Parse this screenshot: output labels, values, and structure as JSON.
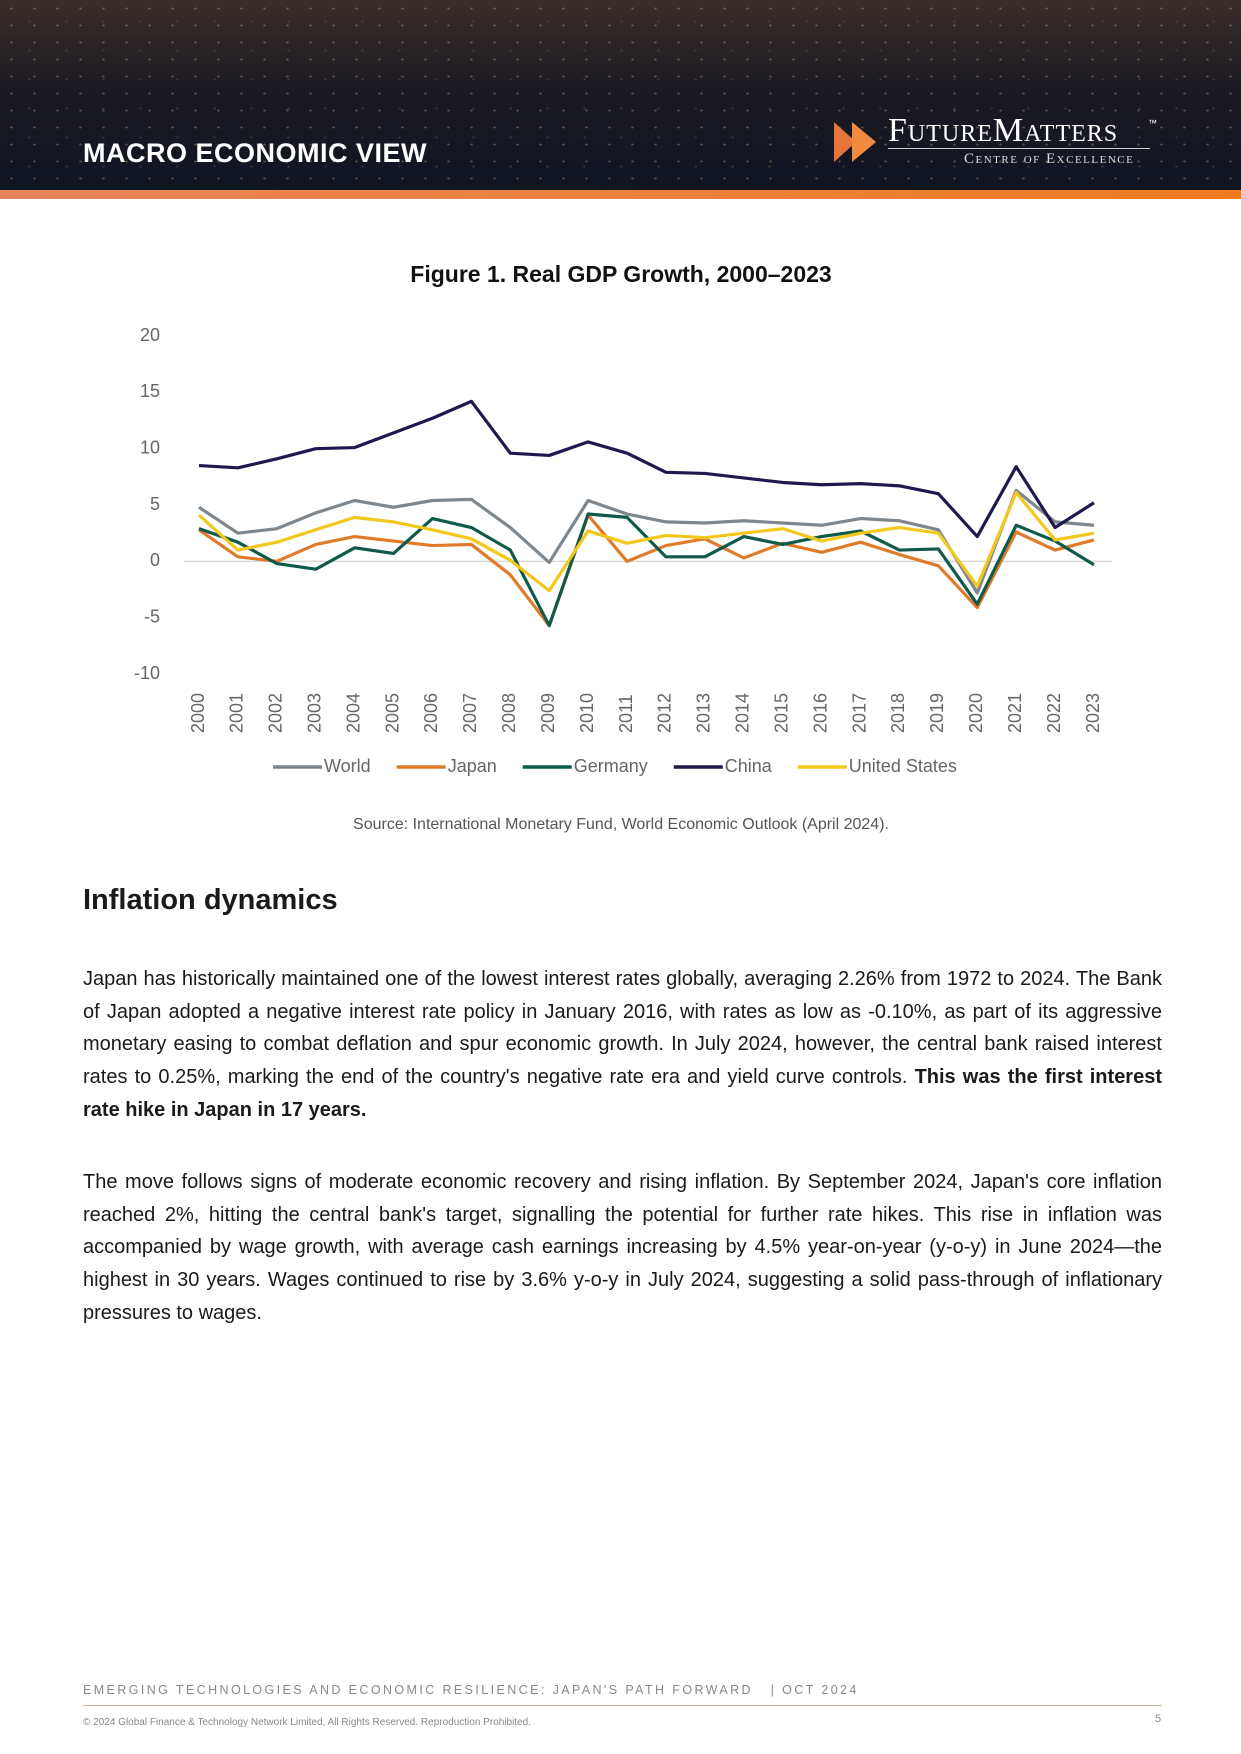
{
  "header": {
    "section": "MACRO ECONOMIC VIEW",
    "logo_name": "FutureMatters",
    "logo_tm": "™",
    "logo_tagline": "Centre of Excellence"
  },
  "chart_data": {
    "type": "line",
    "title": "Figure 1. Real GDP Growth, 2000–2023",
    "categories": [
      "2000",
      "2001",
      "2002",
      "2003",
      "2004",
      "2005",
      "2006",
      "2007",
      "2008",
      "2009",
      "2010",
      "2011",
      "2012",
      "2013",
      "2014",
      "2015",
      "2016",
      "2017",
      "2018",
      "2019",
      "2020",
      "2021",
      "2022",
      "2023"
    ],
    "series": [
      {
        "name": "World",
        "color": "#7d878d",
        "values": [
          4.8,
          2.5,
          2.9,
          4.3,
          5.4,
          4.8,
          5.4,
          5.5,
          3.0,
          -0.1,
          5.4,
          4.2,
          3.5,
          3.4,
          3.6,
          3.4,
          3.2,
          3.8,
          3.6,
          2.8,
          -2.8,
          6.3,
          3.5,
          3.2
        ]
      },
      {
        "name": "Japan",
        "color": "#e07b2a",
        "values": [
          2.8,
          0.4,
          0.0,
          1.5,
          2.2,
          1.8,
          1.4,
          1.5,
          -1.2,
          -5.7,
          4.1,
          0.0,
          1.4,
          2.0,
          0.3,
          1.6,
          0.8,
          1.7,
          0.6,
          -0.4,
          -4.1,
          2.6,
          1.0,
          1.9
        ]
      },
      {
        "name": "Germany",
        "color": "#0f5a4a",
        "values": [
          2.9,
          1.7,
          -0.2,
          -0.7,
          1.2,
          0.7,
          3.8,
          3.0,
          1.0,
          -5.7,
          4.2,
          3.9,
          0.4,
          0.4,
          2.2,
          1.5,
          2.2,
          2.7,
          1.0,
          1.1,
          -3.8,
          3.2,
          1.8,
          -0.3
        ]
      },
      {
        "name": "China",
        "color": "#1f1a4e",
        "values": [
          8.5,
          8.3,
          9.1,
          10.0,
          10.1,
          11.4,
          12.7,
          14.2,
          9.6,
          9.4,
          10.6,
          9.6,
          7.9,
          7.8,
          7.4,
          7.0,
          6.8,
          6.9,
          6.7,
          6.0,
          2.2,
          8.4,
          3.0,
          5.2
        ]
      },
      {
        "name": "United States",
        "color": "#f4c71c",
        "values": [
          4.1,
          1.0,
          1.7,
          2.8,
          3.9,
          3.5,
          2.8,
          2.0,
          0.1,
          -2.6,
          2.7,
          1.6,
          2.3,
          2.1,
          2.5,
          2.9,
          1.8,
          2.5,
          3.0,
          2.5,
          -2.2,
          6.1,
          1.9,
          2.5
        ]
      }
    ],
    "ylim": [
      -10,
      20
    ],
    "yticks": [
      20,
      15,
      10,
      5,
      0,
      -5,
      -10
    ],
    "grid": false,
    "legend": "bottom",
    "source": "Source: International Monetary Fund, World Economic Outlook (April 2024)."
  },
  "section": {
    "heading": "Inflation dynamics",
    "paragraphs": [
      {
        "text": "Japan has historically maintained one of the lowest interest rates globally, averaging 2.26% from 1972 to 2024. The Bank of Japan adopted a negative interest rate policy in January 2016, with rates as low as -0.10%, as part of its aggressive monetary easing to combat deflation and spur economic growth. In July 2024, however, the central bank raised interest rates to 0.25%, marking the end of the country's negative rate era and yield curve controls.",
        "bold": "This was the first interest rate hike in Japan in 17 years."
      },
      {
        "text": "The move follows signs of moderate economic recovery and rising inflation. By September 2024, Japan's core inflation reached 2%, hitting the central bank's target, signalling the potential for further rate hikes. This rise in inflation was accompanied by wage growth, with average cash earnings increasing by 4.5% year-on-year (y-o-y) in June 2024—the highest in 30 years. Wages continued to rise by 3.6% y-o-y in July 2024, suggesting a solid pass-through of inflationary pressures to wages."
      }
    ]
  },
  "footer": {
    "report": "EMERGING TECHNOLOGIES AND ECONOMIC RESILIENCE: JAPAN'S PATH FORWARD",
    "date": "| OCT 2024",
    "copyright": "© 2024 Global Finance & Technology Network Limited, All Rights Reserved. Reproduction Prohibited.",
    "page": "5"
  }
}
